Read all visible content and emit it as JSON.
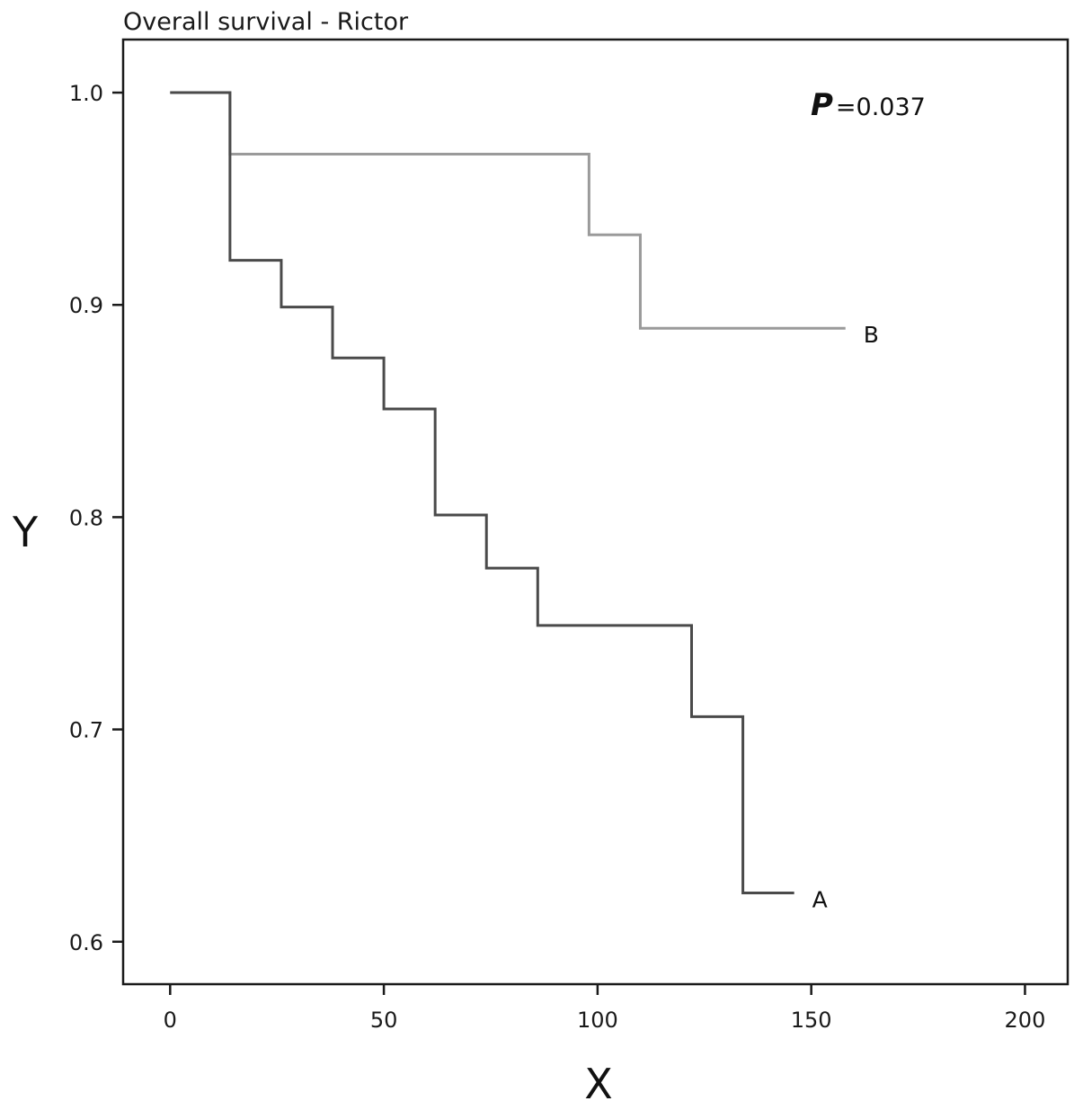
{
  "chart_data": {
    "type": "line",
    "title": "Overall survival - Rictor",
    "xlabel": "X",
    "ylabel": "Y",
    "xlim": [
      -11,
      210
    ],
    "ylim": [
      0.58,
      1.025
    ],
    "x_ticks": [
      0,
      50,
      100,
      150,
      200
    ],
    "y_ticks": [
      0.6,
      0.7,
      0.8,
      0.9,
      1.0
    ],
    "x_tick_labels": [
      "0",
      "50",
      "100",
      "150",
      "200"
    ],
    "y_tick_labels": [
      "0.6",
      "0.7",
      "0.8",
      "0.9",
      "1.0"
    ],
    "grid": false,
    "legend": "none",
    "annotation": {
      "symbol": "P",
      "text": "=0.037"
    },
    "series": [
      {
        "name": "A",
        "color": "#4a4a4a",
        "x": [
          0,
          14,
          26,
          38,
          50,
          62,
          74,
          86,
          122,
          134,
          146
        ],
        "y": [
          1.0,
          0.921,
          0.899,
          0.875,
          0.851,
          0.801,
          0.776,
          0.749,
          0.706,
          0.623,
          0.623
        ]
      },
      {
        "name": "B",
        "color": "#9a9a9a",
        "x": [
          0,
          14,
          98,
          110,
          158
        ],
        "y": [
          1.0,
          0.971,
          0.933,
          0.889,
          0.889
        ]
      }
    ]
  }
}
